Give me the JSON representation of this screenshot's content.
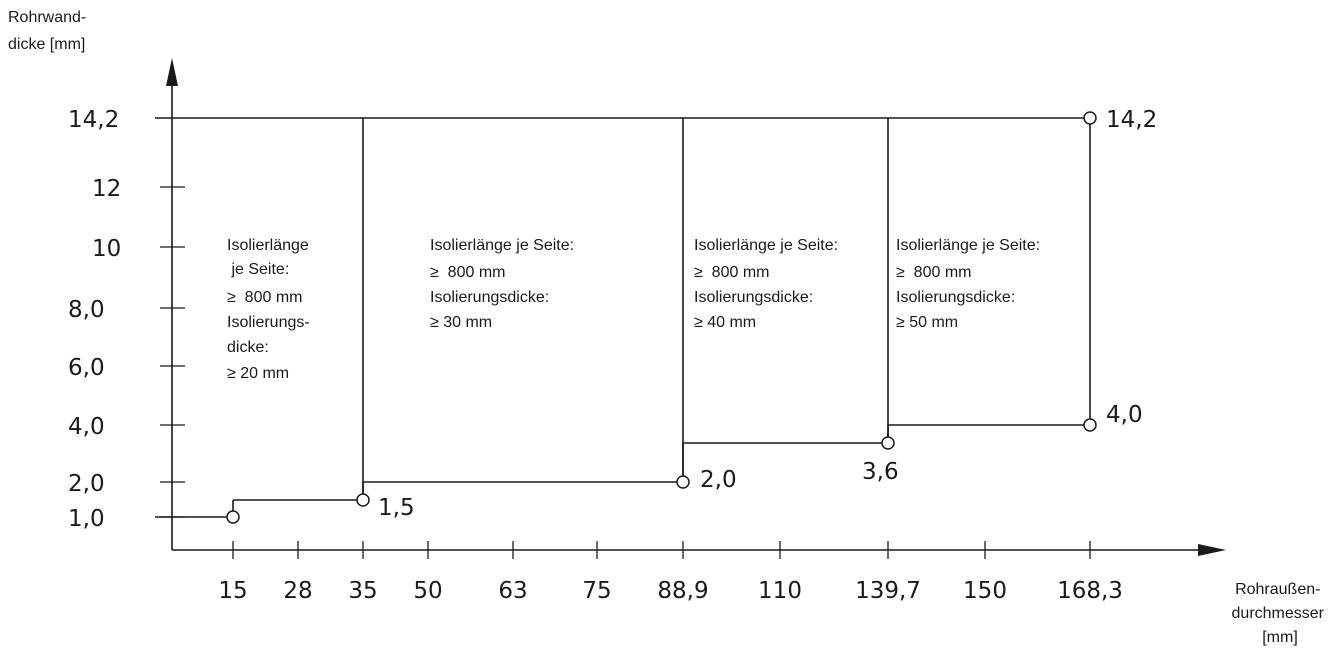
{
  "chart_data": {
    "type": "step-diagram",
    "ylabel": [
      "Rohrwand-",
      "dicke [mm]"
    ],
    "xlabel": [
      "Rohraußen-",
      "durchmesser",
      "[mm]"
    ],
    "x_ticks": [
      "15",
      "28",
      "35",
      "50",
      "63",
      "75",
      "88,9",
      "110",
      "139,7",
      "150",
      "168,3"
    ],
    "y_ticks": [
      "1,0",
      "2,0",
      "4,0",
      "6,0",
      "8,0",
      "10",
      "12",
      "14,2"
    ],
    "boundary_points": [
      {
        "x": 15,
        "y": 1.0,
        "label": ""
      },
      {
        "x": 35,
        "y": 1.5,
        "label": "1,5"
      },
      {
        "x": 88.9,
        "y": 2.0,
        "label": "2,0"
      },
      {
        "x": 139.7,
        "y": 3.6,
        "label": "3,6"
      },
      {
        "x": 168.3,
        "y": 4.0,
        "label": "4,0"
      },
      {
        "x": 168.3,
        "y": 14.2,
        "label": "14,2"
      }
    ],
    "regions": [
      {
        "lines": [
          "Isolierlänge",
          " je Seite:",
          "≥  800 mm",
          "Isolierungs-",
          "dicke:",
          "≥ 20 mm"
        ]
      },
      {
        "lines": [
          "Isolierlänge je Seite:",
          "≥  800 mm",
          "Isolierungsdicke:",
          "≥ 30 mm"
        ]
      },
      {
        "lines": [
          "Isolierlänge je Seite:",
          "≥  800 mm",
          "Isolierungsdicke:",
          "≥ 40 mm"
        ]
      },
      {
        "lines": [
          "Isolierlänge je Seite:",
          "≥  800 mm",
          "Isolierungsdicke:",
          "≥ 50 mm"
        ]
      }
    ]
  }
}
